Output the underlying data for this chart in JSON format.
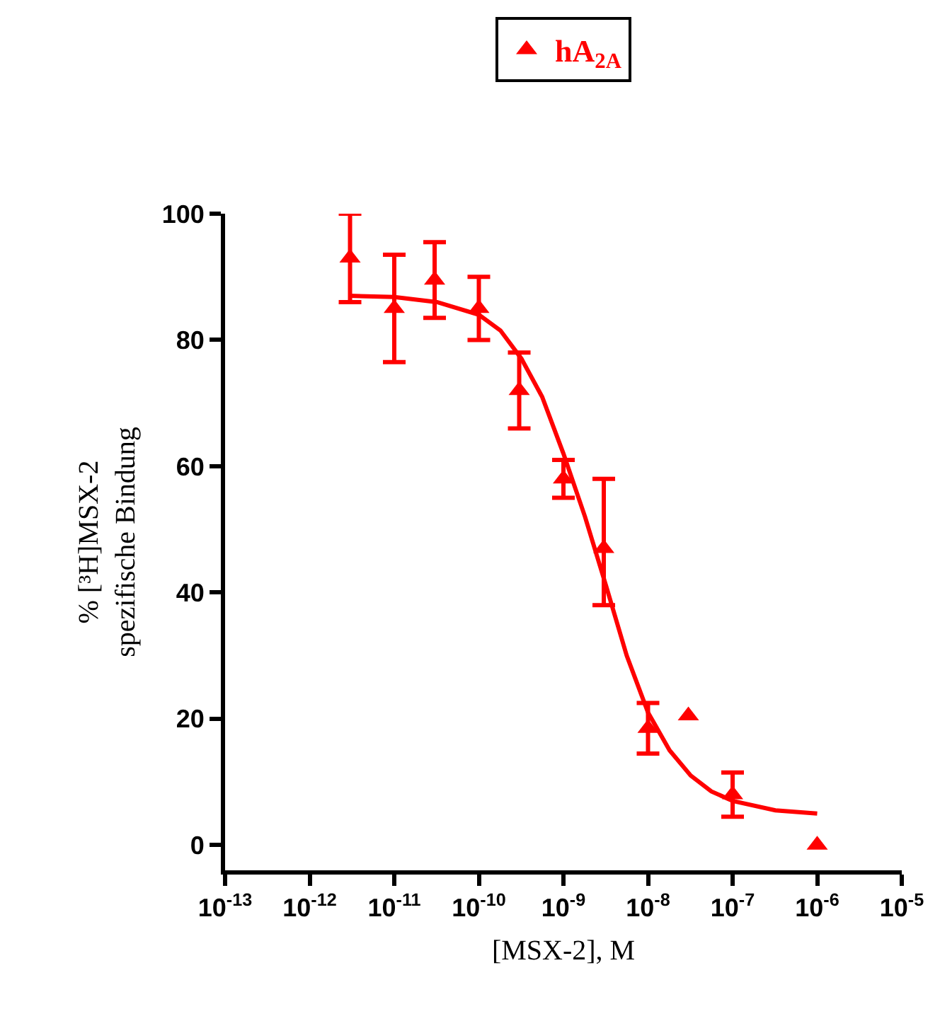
{
  "chart_data": {
    "type": "scatter",
    "xlabel": "[MSX-2], M",
    "ylabel": "% [³H]MSX-2\nspezifische Bindung",
    "log": "x",
    "xlim": [
      1e-13,
      1e-05
    ],
    "xticks": [
      {
        "value": 1e-13,
        "label": "10$^{-13}$"
      },
      {
        "value": 1e-12,
        "label": "10$^{-12}$"
      },
      {
        "value": 1e-11,
        "label": "10$^{-11}$"
      },
      {
        "value": 1e-10,
        "label": "10$^{-10}$"
      },
      {
        "value": 1e-09,
        "label": "10$^{-9}$"
      },
      {
        "value": 1e-08,
        "label": "10$^{-8}$"
      },
      {
        "value": 1e-07,
        "label": "10$^{-7}$"
      },
      {
        "value": 1e-06,
        "label": "10$^{-6}$"
      },
      {
        "value": 1e-05,
        "label": "10$^{-5}$"
      }
    ],
    "ylim": [
      -4,
      100
    ],
    "yticks": [
      0,
      20,
      40,
      60,
      80,
      100
    ],
    "grid": false,
    "legend": "top",
    "marker": "triangle",
    "series": [
      {
        "name": "hA$_{2A}$",
        "color": "#ff0000",
        "x": [
          3e-12,
          1e-11,
          3e-11,
          1e-10,
          3e-10,
          1e-09,
          3e-09,
          1e-08,
          3e-08,
          1e-07,
          1e-06
        ],
        "values": [
          93,
          85,
          89.5,
          85,
          72,
          58,
          47,
          18.5,
          20.5,
          8,
          0
        ],
        "errors": [
          7,
          8.5,
          6,
          5,
          6,
          3,
          [
            38,
            58
          ],
          4,
          null,
          3.5,
          null
        ]
      },
      {
        "color": "#ff0000",
        "type": "line",
        "marker": "none",
        "x": [
          3e-12,
          1e-11,
          3.2e-11,
          1e-10,
          1.8e-10,
          3.2e-10,
          5.6e-10,
          1e-09,
          1.8e-09,
          3.2e-09,
          5.6e-09,
          1e-08,
          1.8e-08,
          3.2e-08,
          5.6e-08,
          1e-07,
          3.2e-07,
          1e-06
        ],
        "values": [
          87,
          86.8,
          86,
          84,
          81.5,
          77,
          71,
          62,
          52,
          41,
          30,
          21,
          15,
          11,
          8.5,
          7,
          5.5,
          5
        ]
      }
    ]
  }
}
